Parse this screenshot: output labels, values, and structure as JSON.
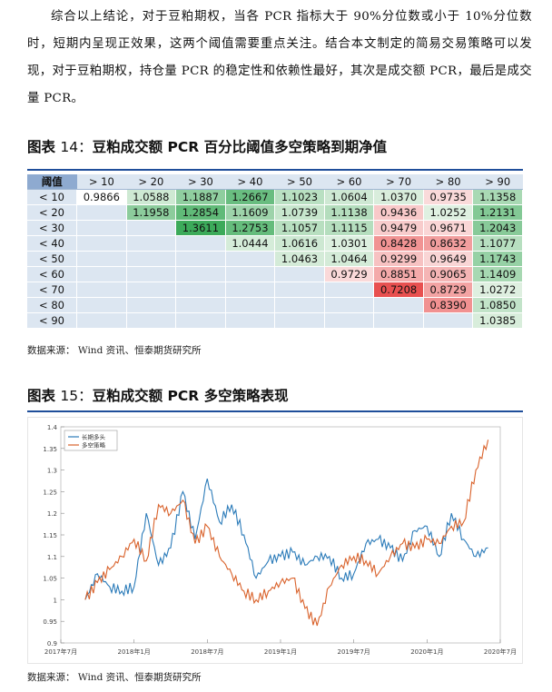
{
  "paragraph": "综合以上结论，对于豆粕期权，当各 PCR 指标大于 90%分位数或小于 10%分位数时，短期内呈现正效果，这两个阈值需要重点关注。结合本文制定的简易交易策略可以发现，对于豆粕期权，持仓量 PCR 的稳定性和依赖性最好，其次是成交额 PCR，最后是成交量 PCR。",
  "figure14": {
    "prefix": "图表",
    "number": "14：",
    "title": "豆粕成交额 PCR 百分比阈值多空策略到期净值",
    "corner": "阈值",
    "columns": [
      "> 10",
      "> 20",
      "> 30",
      "> 40",
      "> 50",
      "> 60",
      "> 70",
      "> 80",
      "> 90"
    ],
    "rows": [
      {
        "label": "< 10",
        "values": [
          "0.9866",
          "1.0588",
          "1.1887",
          "1.2667",
          "1.1023",
          "1.0604",
          "1.0370",
          "0.9735",
          "1.1358"
        ]
      },
      {
        "label": "< 20",
        "values": [
          "",
          "1.1958",
          "1.2854",
          "1.1609",
          "1.0739",
          "1.1138",
          "0.9436",
          "1.0252",
          "1.2131"
        ]
      },
      {
        "label": "< 30",
        "values": [
          "",
          "",
          "1.3611",
          "1.2753",
          "1.1057",
          "1.1115",
          "0.9479",
          "0.9671",
          "1.2043"
        ]
      },
      {
        "label": "< 40",
        "values": [
          "",
          "",
          "",
          "1.0444",
          "1.0616",
          "1.0301",
          "0.8428",
          "0.8632",
          "1.1077"
        ]
      },
      {
        "label": "< 50",
        "values": [
          "",
          "",
          "",
          "",
          "1.0463",
          "1.0464",
          "0.9299",
          "0.9649",
          "1.1743"
        ]
      },
      {
        "label": "< 60",
        "values": [
          "",
          "",
          "",
          "",
          "",
          "0.9729",
          "0.8851",
          "0.9065",
          "1.1409"
        ]
      },
      {
        "label": "< 70",
        "values": [
          "",
          "",
          "",
          "",
          "",
          "",
          "0.7208",
          "0.8729",
          "1.0272"
        ]
      },
      {
        "label": "< 80",
        "values": [
          "",
          "",
          "",
          "",
          "",
          "",
          "",
          "0.8390",
          "1.0850"
        ]
      },
      {
        "label": "< 90",
        "values": [
          "",
          "",
          "",
          "",
          "",
          "",
          "",
          "",
          "1.0385"
        ]
      }
    ],
    "source": "数据来源：  Wind 资讯、恒泰期货研究所"
  },
  "figure15": {
    "prefix": "图表",
    "number": "15：",
    "title": "豆粕成交额 PCR 多空策略表现",
    "source": "数据来源：  Wind 资讯、恒泰期货研究所"
  },
  "colors": {
    "rule": "#1f4e9a",
    "long_hold": "#2b7bb9",
    "long_short": "#d9622b",
    "header_bg": "#dce6f1"
  },
  "chart_data": {
    "type": "line",
    "title": "",
    "legend": [
      "长期多头",
      "多空策略"
    ],
    "legend_position": "top-left",
    "ylim": [
      0.9,
      1.4
    ],
    "yticks": [
      "0.9",
      "0.95",
      "1",
      "1.05",
      "1.1",
      "1.15",
      "1.2",
      "1.25",
      "1.3",
      "1.35",
      "1.4"
    ],
    "xticks": [
      "2017年7月",
      "2018年1月",
      "2018年7月",
      "2019年1月",
      "2019年7月",
      "2020年1月",
      "2020年7月"
    ],
    "xlim": [
      "2017-07",
      "2020-07"
    ],
    "series": [
      {
        "name": "长期多头",
        "x": [
          "2017-09",
          "2017-10",
          "2017-11",
          "2017-12",
          "2018-01",
          "2018-02",
          "2018-03",
          "2018-04",
          "2018-05",
          "2018-06",
          "2018-07",
          "2018-08",
          "2018-09",
          "2018-10",
          "2018-11",
          "2018-12",
          "2019-01",
          "2019-02",
          "2019-03",
          "2019-04",
          "2019-05",
          "2019-06",
          "2019-07",
          "2019-08",
          "2019-09",
          "2019-10",
          "2019-11",
          "2019-12",
          "2020-01",
          "2020-02",
          "2020-03",
          "2020-04",
          "2020-05",
          "2020-06"
        ],
        "values": [
          1.0,
          1.06,
          1.03,
          1.02,
          1.03,
          1.2,
          1.08,
          1.12,
          1.25,
          1.14,
          1.28,
          1.18,
          1.22,
          1.15,
          1.05,
          1.09,
          1.1,
          1.11,
          1.08,
          1.1,
          1.1,
          1.05,
          1.06,
          1.13,
          1.14,
          1.12,
          1.09,
          1.16,
          1.17,
          1.1,
          1.2,
          1.14,
          1.1,
          1.12
        ]
      },
      {
        "name": "多空策略",
        "x": [
          "2017-09",
          "2017-10",
          "2017-11",
          "2017-12",
          "2018-01",
          "2018-02",
          "2018-03",
          "2018-04",
          "2018-05",
          "2018-06",
          "2018-07",
          "2018-08",
          "2018-09",
          "2018-10",
          "2018-11",
          "2018-12",
          "2019-01",
          "2019-02",
          "2019-03",
          "2019-04",
          "2019-05",
          "2019-06",
          "2019-07",
          "2019-08",
          "2019-09",
          "2019-10",
          "2019-11",
          "2019-12",
          "2020-01",
          "2020-02",
          "2020-03",
          "2020-04",
          "2020-05",
          "2020-06"
        ],
        "values": [
          1.0,
          1.04,
          1.07,
          1.1,
          1.14,
          1.09,
          1.22,
          1.2,
          1.23,
          1.13,
          1.17,
          1.1,
          1.06,
          1.02,
          1.0,
          1.02,
          1.04,
          1.05,
          0.98,
          0.94,
          1.03,
          1.08,
          1.1,
          1.09,
          1.06,
          1.1,
          1.13,
          1.12,
          1.14,
          1.13,
          1.17,
          1.18,
          1.3,
          1.37
        ]
      }
    ]
  }
}
